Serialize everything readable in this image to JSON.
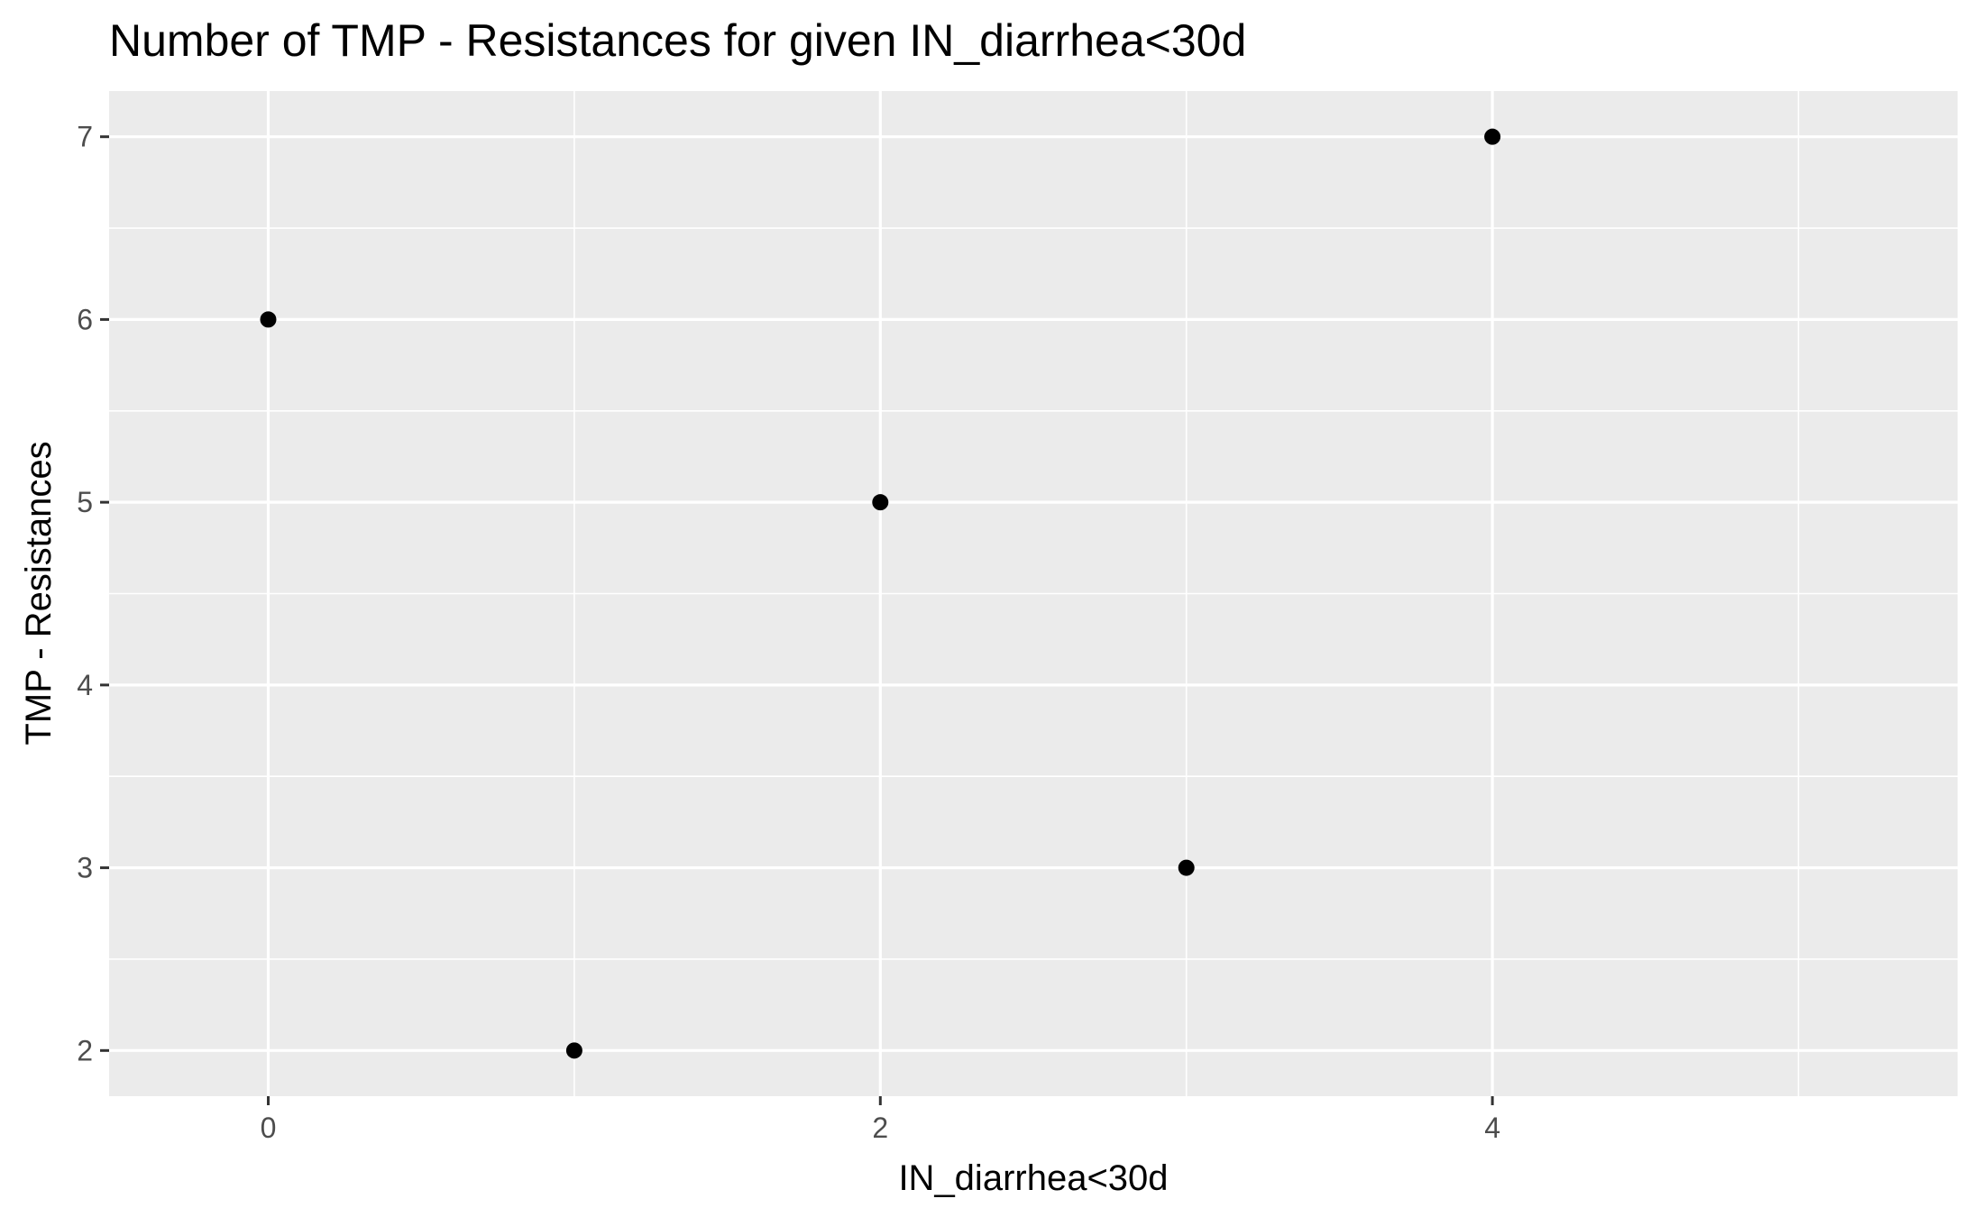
{
  "chart_data": {
    "type": "scatter",
    "title": "Number of TMP - Resistances for given IN_diarrhea<30d",
    "xlabel": "IN_diarrhea<30d",
    "ylabel": "TMP - Resistances",
    "xlim": [
      -0.52,
      5.52
    ],
    "ylim": [
      1.75,
      7.25
    ],
    "x_ticks": [
      0,
      2,
      4
    ],
    "x_minor_ticks": [
      1,
      3,
      5
    ],
    "y_ticks": [
      2,
      3,
      4,
      5,
      6,
      7
    ],
    "y_minor_ticks": [
      2.5,
      3.5,
      4.5,
      5.5,
      6.5
    ],
    "grid": true,
    "legend": "none",
    "series": [
      {
        "x": [
          0,
          1,
          2,
          3,
          4
        ],
        "y": [
          6,
          2,
          5,
          3,
          7
        ]
      }
    ],
    "colors": {
      "panel_background": "#ebebeb",
      "grid": "#ffffff",
      "point": "#000000",
      "tick_label": "#4d4d4d",
      "tick_mark": "#333333"
    }
  }
}
